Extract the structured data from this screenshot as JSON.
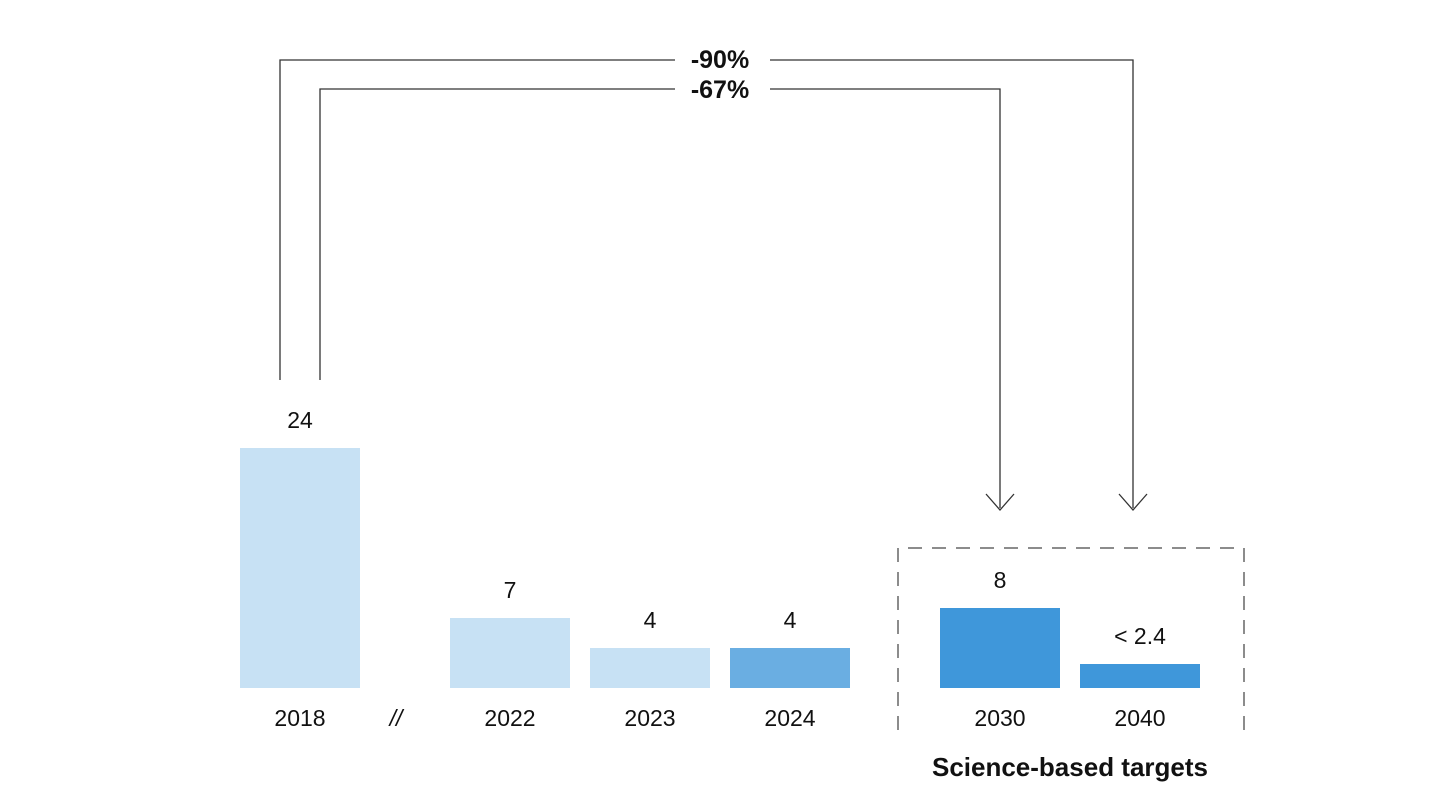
{
  "chart_data": {
    "type": "bar",
    "categories": [
      "2018",
      "2022",
      "2023",
      "2024",
      "2030",
      "2040"
    ],
    "values": [
      24,
      7,
      4,
      4,
      8,
      2.4
    ],
    "value_labels": [
      "24",
      "7",
      "4",
      "4",
      "8",
      "< 2.4"
    ],
    "ylim": [
      0,
      24
    ],
    "axis_break_label": "//",
    "group_label": "Science-based targets",
    "grid": false,
    "colors": {
      "past": "#c7e1f4",
      "current": "#6aaee2",
      "target": "#3f97da"
    },
    "bar_color_keys": [
      "past",
      "past",
      "past",
      "current",
      "target",
      "target"
    ],
    "annotations": [
      {
        "text": "-90%",
        "from": "2018",
        "to": "2040"
      },
      {
        "text": "-67%",
        "from": "2018",
        "to": "2030"
      }
    ]
  }
}
